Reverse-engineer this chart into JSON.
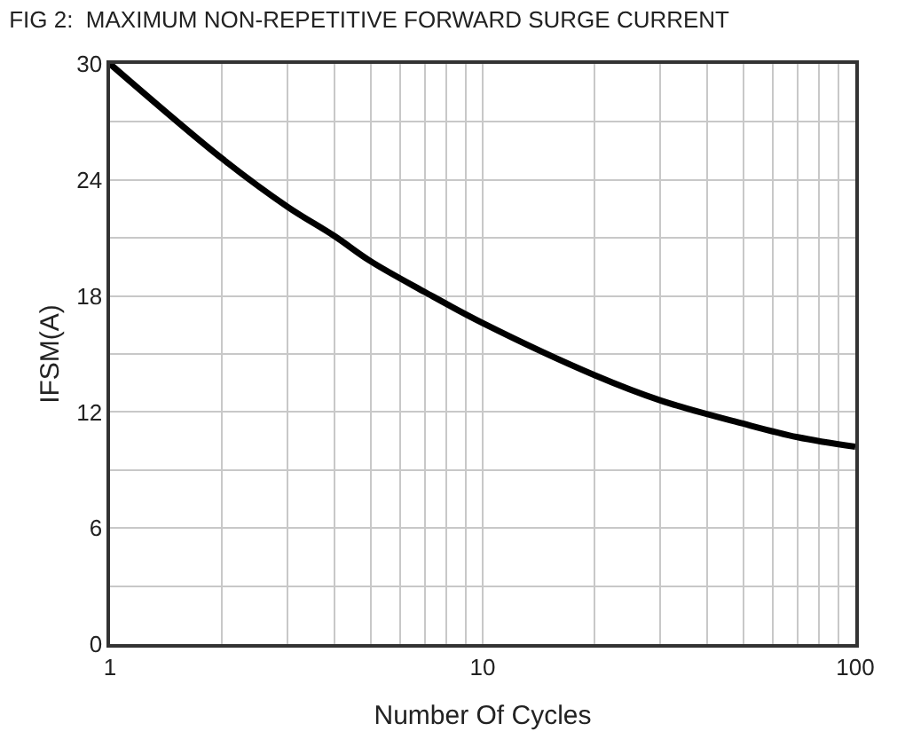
{
  "chart_data": {
    "type": "line",
    "title": "FIG 2:  MAXIMUM NON-REPETITIVE FORWARD SURGE CURRENT",
    "xlabel": "Number Of Cycles",
    "ylabel": "IFSM(A)",
    "log": "x",
    "x": [
      1,
      2,
      3,
      4,
      5,
      7,
      10,
      20,
      30,
      50,
      70,
      100
    ],
    "series": [
      {
        "color": "#000000",
        "values": [
          30,
          25.1,
          22.6,
          21.1,
          19.8,
          18.2,
          16.6,
          13.9,
          12.6,
          11.4,
          10.7,
          10.2
        ]
      }
    ],
    "xlim": [
      1,
      100
    ],
    "ylim": [
      0,
      30
    ],
    "xticks": [
      1,
      {
        "value": 2,
        "label": null
      },
      {
        "value": 3,
        "label": null
      },
      {
        "value": 4,
        "label": null
      },
      {
        "value": 5,
        "label": null
      },
      {
        "value": 6,
        "label": null
      },
      {
        "value": 7,
        "label": null
      },
      {
        "value": 8,
        "label": null
      },
      {
        "value": 9,
        "label": null
      },
      10,
      {
        "value": 20,
        "label": null
      },
      {
        "value": 30,
        "label": null
      },
      {
        "value": 40,
        "label": null
      },
      {
        "value": 50,
        "label": null
      },
      {
        "value": 60,
        "label": null
      },
      {
        "value": 70,
        "label": null
      },
      {
        "value": 80,
        "label": null
      },
      {
        "value": 90,
        "label": null
      },
      100
    ],
    "yticks": [
      0,
      {
        "value": 3,
        "label": null
      },
      6,
      {
        "value": 9,
        "label": null
      },
      12,
      {
        "value": 15,
        "label": null
      },
      18,
      {
        "value": 21,
        "label": null
      },
      24,
      {
        "value": 27,
        "label": null
      },
      30
    ],
    "grid": true,
    "legend": false,
    "marker": "none",
    "line_style": "solid"
  }
}
